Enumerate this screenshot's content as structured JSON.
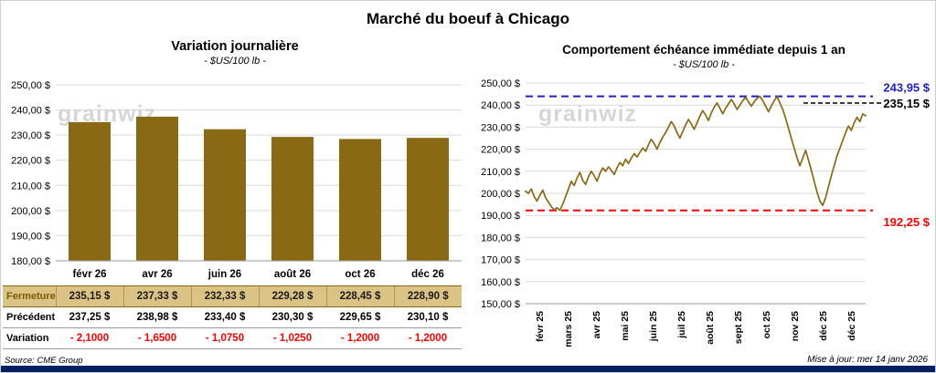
{
  "page": {
    "title": "Marché du boeuf à Chicago",
    "source": "Source: CME Group",
    "updated": "Mise à jour: mer 14 janv 2026",
    "watermark": "grainwiz"
  },
  "table": {
    "rows": [
      {
        "label": "Fermeture",
        "values": [
          "235,15  $",
          "237,33  $",
          "232,33  $",
          "229,28  $",
          "228,45  $",
          "228,90  $"
        ]
      },
      {
        "label": "Précédent",
        "values": [
          "237,25  $",
          "238,98  $",
          "233,40  $",
          "230,30  $",
          "229,65  $",
          "230,10  $"
        ]
      },
      {
        "label": "Variation",
        "values": [
          "- 2,1000",
          "- 1,6500",
          "- 1,0750",
          "- 1,0250",
          "- 1,2000",
          "- 1,2000"
        ]
      }
    ]
  },
  "chart_data": [
    {
      "type": "bar",
      "title": "Variation journalière",
      "subtitle": "- $US/100 lb -",
      "categories": [
        "févr 26",
        "avr 26",
        "juin 26",
        "août 26",
        "oct 26",
        "déc 26"
      ],
      "values": [
        235.15,
        237.33,
        232.33,
        229.28,
        228.45,
        228.9
      ],
      "ylabel": "$US/100 lb",
      "ylim": [
        180,
        250
      ],
      "ytick_step": 10,
      "grid": true,
      "bar_color": "#8a6914"
    },
    {
      "type": "line",
      "title": "Comportement échéance immédiate depuis 1 an",
      "subtitle": "- $US/100 lb -",
      "x_labels": [
        "févr 25",
        "mars 25",
        "avr 25",
        "mai 25",
        "juin 25",
        "juil 25",
        "août 25",
        "sept 25",
        "oct 25",
        "nov 25",
        "déc 25",
        "déc 25"
      ],
      "values": [
        201,
        200,
        202,
        198.5,
        196.5,
        199,
        201.5,
        198,
        196,
        194,
        192.5,
        193.5,
        192.3,
        195,
        198.5,
        202,
        205.5,
        203.5,
        207,
        209.5,
        206,
        204,
        207.5,
        210,
        208,
        205.5,
        209,
        211.5,
        210,
        212,
        210.5,
        208.5,
        211.5,
        214,
        212.5,
        215.5,
        213.5,
        216,
        218,
        216.5,
        218.5,
        220.5,
        219,
        222,
        224.5,
        222.5,
        220,
        223,
        225.5,
        227.5,
        230,
        232.5,
        230.5,
        227.5,
        225,
        228,
        231,
        233.5,
        231.5,
        229,
        232,
        235,
        237.5,
        235.5,
        233,
        236.5,
        239,
        241,
        238.5,
        236,
        238.5,
        240.5,
        242.5,
        240.5,
        238,
        240,
        242,
        243.5,
        241.5,
        239.5,
        241.5,
        243,
        244,
        242,
        239.5,
        237,
        239.5,
        242,
        243.8,
        241,
        238,
        234,
        229.5,
        225,
        220.5,
        216,
        212.5,
        216,
        219.5,
        215,
        210.5,
        205.5,
        200.5,
        196.5,
        194.5,
        198,
        203,
        208,
        212.5,
        217,
        220.5,
        224,
        227.5,
        230.5,
        228.5,
        232,
        234.5,
        232.5,
        236,
        235.15
      ],
      "ylabel": "$US/100 lb",
      "ylim": [
        150,
        250
      ],
      "ytick_step": 10,
      "grid": true,
      "line_color": "#8a6914",
      "hlines": [
        {
          "value": 243.95,
          "color": "#2020c8",
          "label": "243,95 $"
        },
        {
          "value": 192.25,
          "color": "#ff0000",
          "label": "192,25 $"
        }
      ],
      "last_label": "235,15 $",
      "last_label_color": "#000000"
    }
  ]
}
